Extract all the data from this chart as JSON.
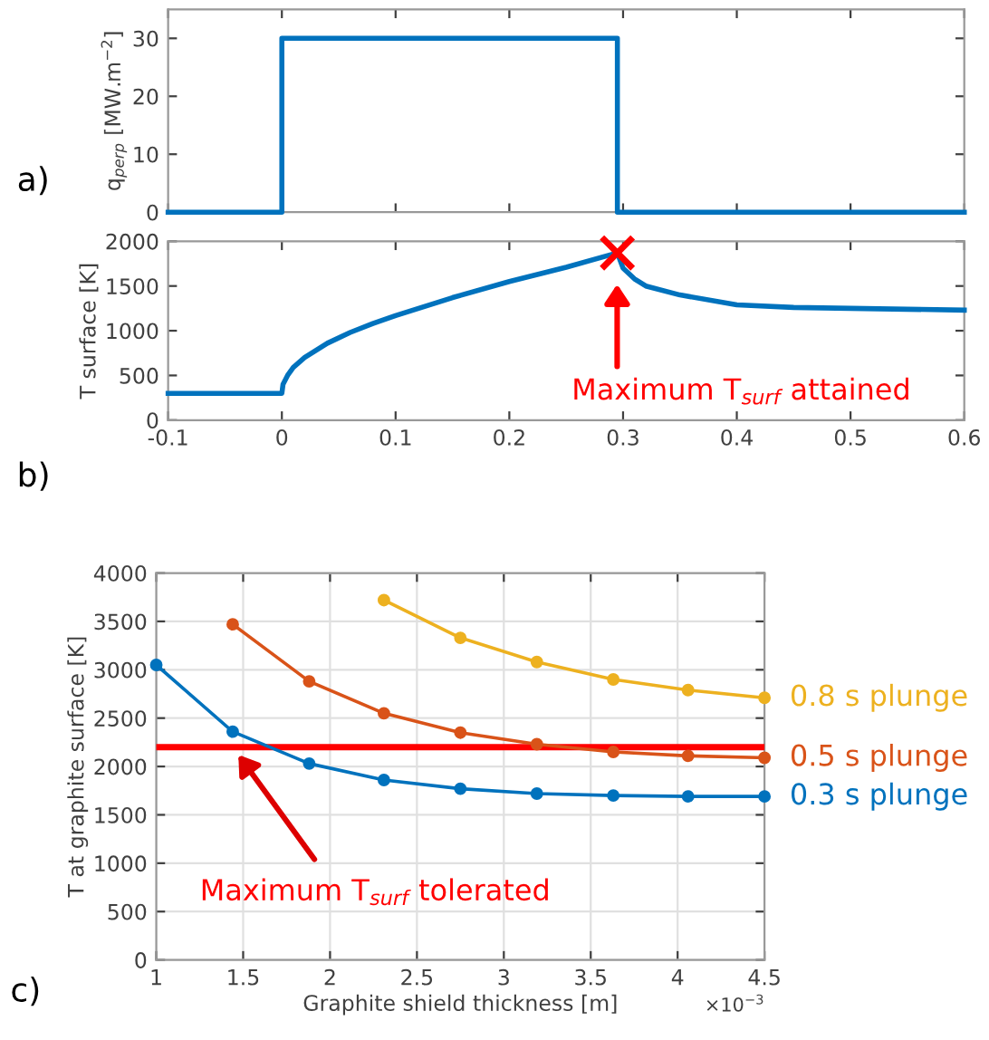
{
  "chart_data": [
    {
      "type": "line",
      "ylabel": "q$_{perp}$ [MW.m$^{−2}$]",
      "xlim": [
        -0.1,
        0.6
      ],
      "ylim": [
        0,
        35
      ],
      "xticks": [
        -0.1,
        0,
        0.1,
        0.2,
        0.3,
        0.4,
        0.5,
        0.6
      ],
      "yticks": [
        0,
        10,
        20,
        30
      ],
      "tick_labels": "y",
      "grid": false,
      "series": [
        {
          "color": "#0072bd",
          "x": [
            -0.1,
            0,
            0,
            0.295,
            0.295,
            0.6
          ],
          "values": [
            0,
            0,
            30,
            30,
            0,
            0
          ]
        }
      ],
      "annotations": [
        "a)"
      ]
    },
    {
      "type": "line",
      "ylabel": "T surface [K]",
      "xlim": [
        -0.1,
        0.6
      ],
      "ylim": [
        0,
        2000
      ],
      "xticks": [
        -0.1,
        0,
        0.1,
        0.2,
        0.3,
        0.4,
        0.5,
        0.6
      ],
      "yticks": [
        0,
        500,
        1000,
        1500,
        2000
      ],
      "grid": false,
      "series": [
        {
          "color": "#0072bd",
          "x": [
            -0.1,
            0,
            0.001,
            0.005,
            0.01,
            0.02,
            0.04,
            0.06,
            0.08,
            0.1,
            0.15,
            0.2,
            0.25,
            0.295,
            0.3,
            0.31,
            0.32,
            0.35,
            0.4,
            0.45,
            0.5,
            0.55,
            0.6
          ],
          "values": [
            300,
            300,
            400,
            500,
            590,
            700,
            860,
            980,
            1080,
            1170,
            1370,
            1550,
            1710,
            1870,
            1700,
            1580,
            1500,
            1400,
            1290,
            1260,
            1250,
            1240,
            1230
          ]
        },
        {
          "type": "scatter",
          "marker": "cross",
          "color": "#ff0000",
          "x": [
            0.295
          ],
          "values": [
            1870
          ]
        }
      ],
      "annotations": [
        "b)",
        "Maximum T$_{surf}$ attained"
      ]
    },
    {
      "type": "line",
      "xlabel": "Graphite shield thickness [m]",
      "ylabel": "T at graphite surface [K]",
      "xlim": [
        1,
        4.5
      ],
      "ylim": [
        0,
        4000
      ],
      "xticks": [
        1,
        1.5,
        2,
        2.5,
        3,
        3.5,
        4,
        4.5
      ],
      "yticks": [
        0,
        500,
        1000,
        1500,
        2000,
        2500,
        3000,
        3500,
        4000
      ],
      "grid": true,
      "marker": "circle",
      "x": [
        1,
        1.44,
        1.88,
        2.31,
        2.75,
        3.19,
        3.63,
        4.06,
        4.5
      ],
      "series": [
        {
          "name": "0.8 s plunge",
          "color": "#edb120",
          "values": [
            null,
            null,
            null,
            3720,
            3330,
            3080,
            2900,
            2790,
            2710
          ]
        },
        {
          "name": "0.5 s plunge",
          "color": "#d95319",
          "values": [
            null,
            3470,
            2880,
            2550,
            2350,
            2230,
            2150,
            2110,
            2090
          ]
        },
        {
          "name": "0.3 s plunge",
          "color": "#0072bd",
          "values": [
            3050,
            2360,
            2030,
            1860,
            1770,
            1720,
            1700,
            1690,
            1690
          ]
        }
      ],
      "ref_lines": [
        {
          "axis": "y",
          "value": 2200,
          "color": "#ff0000"
        }
      ],
      "annotations": [
        "c)",
        "×10$^{−3}$",
        "Maximum T$_{surf}$ tolerated"
      ]
    }
  ]
}
